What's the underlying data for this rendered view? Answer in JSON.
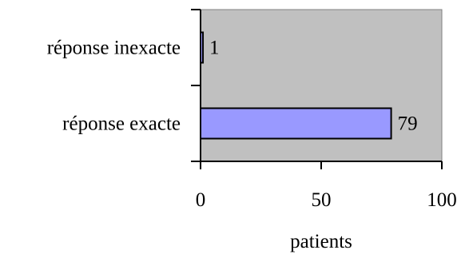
{
  "chart_data": {
    "type": "bar",
    "orientation": "horizontal",
    "categories": [
      "réponse inexacte",
      "réponse exacte"
    ],
    "values": [
      1,
      79
    ],
    "xlabel": "patients",
    "xlim": [
      0,
      100
    ],
    "xticks": [
      0,
      50,
      100
    ],
    "grid": false,
    "legend": "none",
    "plot_background": "#c0c0c0",
    "bar_color": "#9999ff",
    "bar_edge_color": "#000000"
  }
}
